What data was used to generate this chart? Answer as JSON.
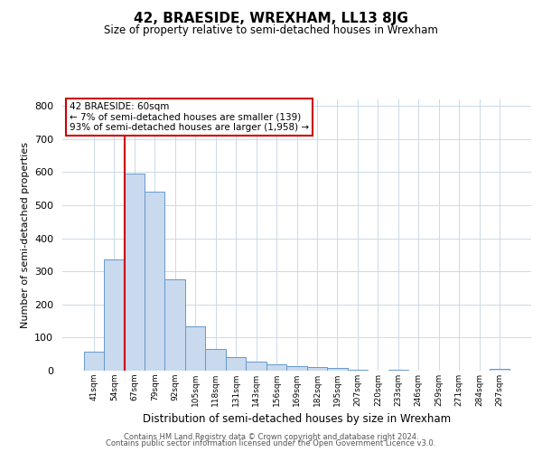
{
  "title": "42, BRAESIDE, WREXHAM, LL13 8JG",
  "subtitle": "Size of property relative to semi-detached houses in Wrexham",
  "xlabel": "Distribution of semi-detached houses by size in Wrexham",
  "ylabel": "Number of semi-detached properties",
  "bar_labels": [
    "41sqm",
    "54sqm",
    "67sqm",
    "79sqm",
    "92sqm",
    "105sqm",
    "118sqm",
    "131sqm",
    "143sqm",
    "156sqm",
    "169sqm",
    "182sqm",
    "195sqm",
    "207sqm",
    "220sqm",
    "233sqm",
    "246sqm",
    "259sqm",
    "271sqm",
    "284sqm",
    "297sqm"
  ],
  "bar_values": [
    58,
    335,
    595,
    540,
    275,
    135,
    65,
    42,
    27,
    20,
    13,
    10,
    7,
    4,
    0,
    4,
    0,
    0,
    0,
    0,
    5
  ],
  "bar_color": "#c9d9ee",
  "bar_edge_color": "#6699cc",
  "vline_color": "#cc0000",
  "vline_x": 1.5,
  "annotation_title": "42 BRAESIDE: 60sqm",
  "annotation_line1": "← 7% of semi-detached houses are smaller (139)",
  "annotation_line2": "93% of semi-detached houses are larger (1,958) →",
  "annotation_box_color": "#ffffff",
  "annotation_box_edge": "#cc0000",
  "ylim": [
    0,
    820
  ],
  "yticks": [
    0,
    100,
    200,
    300,
    400,
    500,
    600,
    700,
    800
  ],
  "footer1": "Contains HM Land Registry data © Crown copyright and database right 2024.",
  "footer2": "Contains public sector information licensed under the Open Government Licence v3.0.",
  "bg_color": "#ffffff",
  "grid_color": "#ccd9e8"
}
